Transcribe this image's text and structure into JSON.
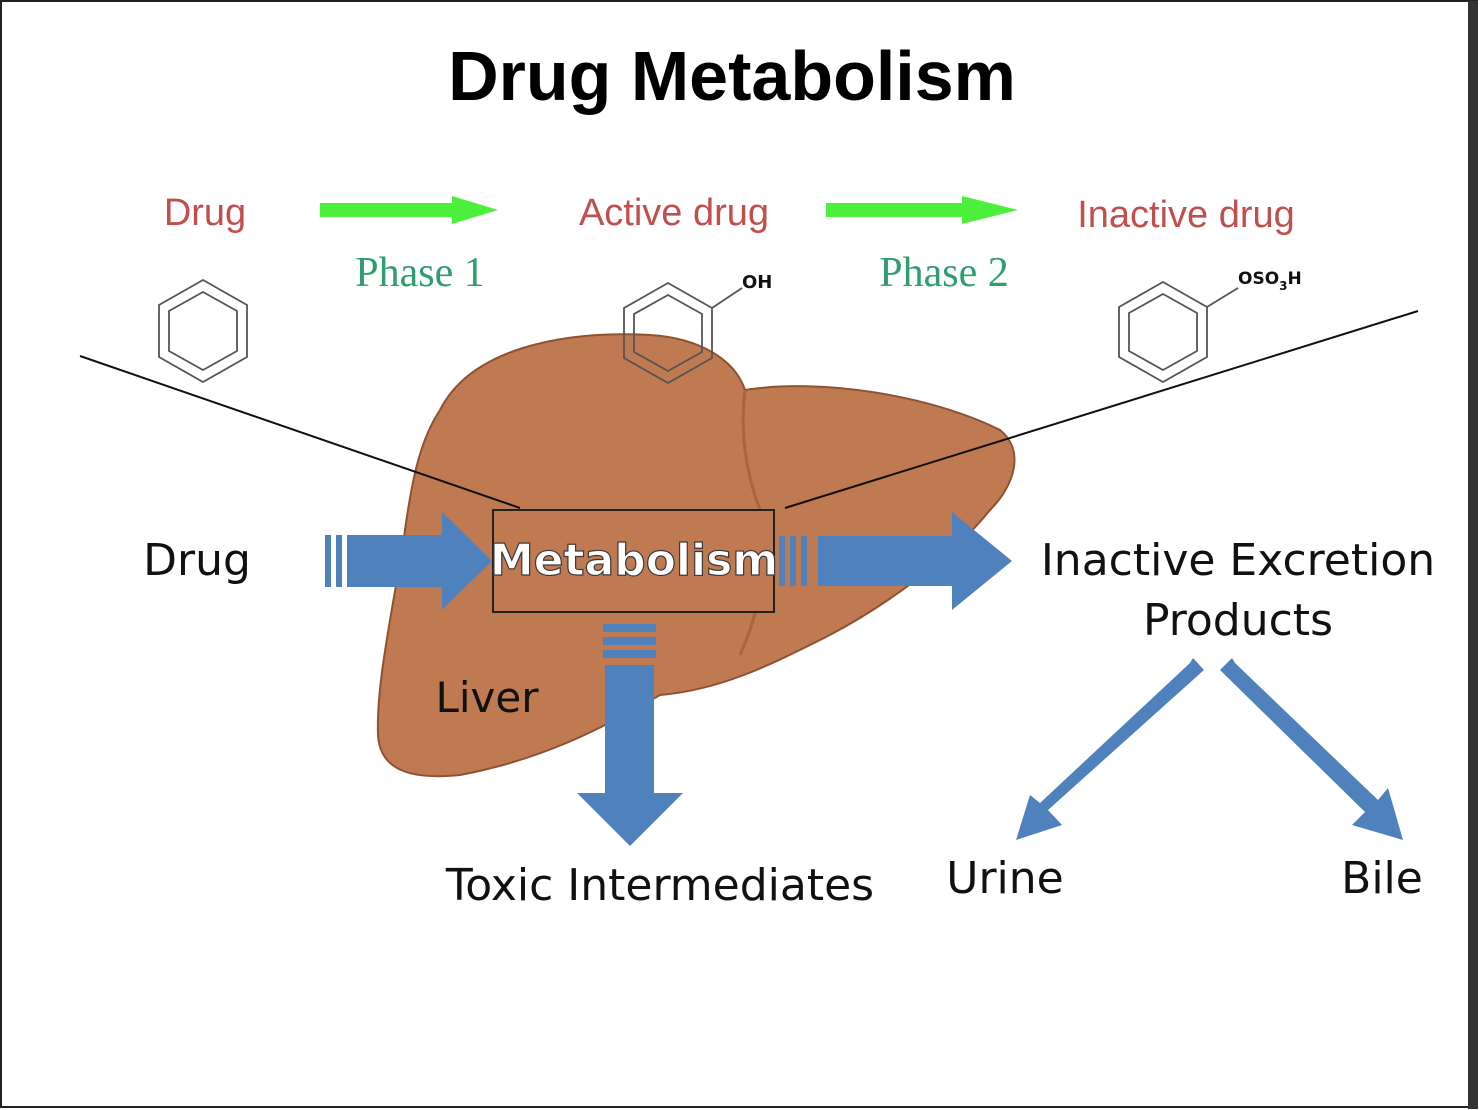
{
  "title": "Drug Metabolism",
  "reaction": {
    "drug": "Drug",
    "active_drug": "Active drug",
    "inactive_drug": "Inactive drug",
    "phase1": "Phase 1",
    "phase2": "Phase 2",
    "oh_group": "OH",
    "oso3h_group": "OSO",
    "oso3h_sub": "3",
    "oso3h_end": "H"
  },
  "flow": {
    "drug": "Drug",
    "metabolism": "Metabolism",
    "liver": "Liver",
    "excretion_line1": "Inactive Excretion",
    "excretion_line2": "Products",
    "toxic": "Toxic Intermediates",
    "urine": "Urine",
    "bile": "Bile"
  },
  "colors": {
    "liver": "#c07a52",
    "liver_dark": "#a96440",
    "arrow_blue": "#4f81bd",
    "phase_arrow": "#4cef3c",
    "red_label": "#c0504d",
    "phase_label": "#2e9e6e"
  }
}
